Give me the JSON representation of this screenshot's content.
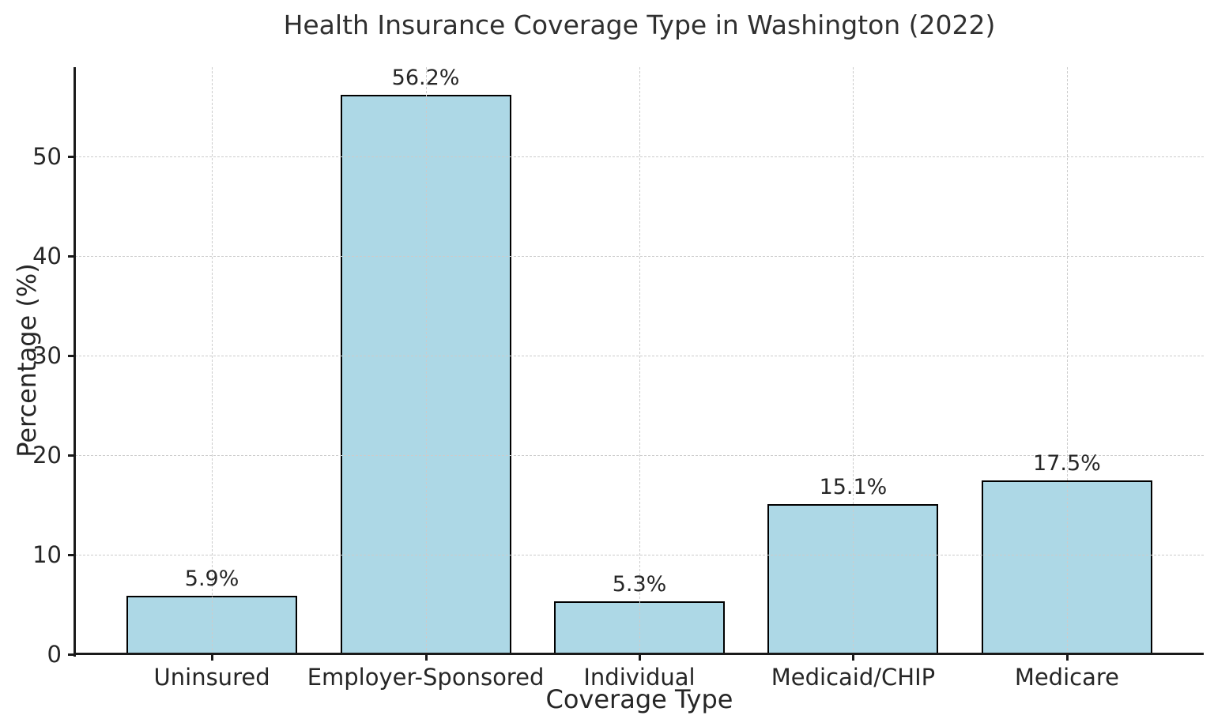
{
  "chart_data": {
    "type": "bar",
    "title": "Health Insurance Coverage Type in Washington (2022)",
    "xlabel": "Coverage Type",
    "ylabel": "Percentage (%)",
    "categories": [
      "Uninsured",
      "Employer-Sponsored",
      "Individual",
      "Medicaid/CHIP",
      "Medicare"
    ],
    "values": [
      5.9,
      56.2,
      5.3,
      15.1,
      17.5
    ],
    "value_labels": [
      "5.9%",
      "56.2%",
      "5.3%",
      "15.1%",
      "17.5%"
    ],
    "ylim": [
      0,
      59
    ],
    "yticks": [
      0,
      10,
      20,
      30,
      40,
      50
    ],
    "grid": "dashed, drawn above bars",
    "legend": "none",
    "colors": {
      "bar_fill": "#ADD8E6",
      "bar_edge": "#000000",
      "grid": "#cccccc",
      "spine": "#1a1a1a",
      "text": "#262626"
    }
  }
}
